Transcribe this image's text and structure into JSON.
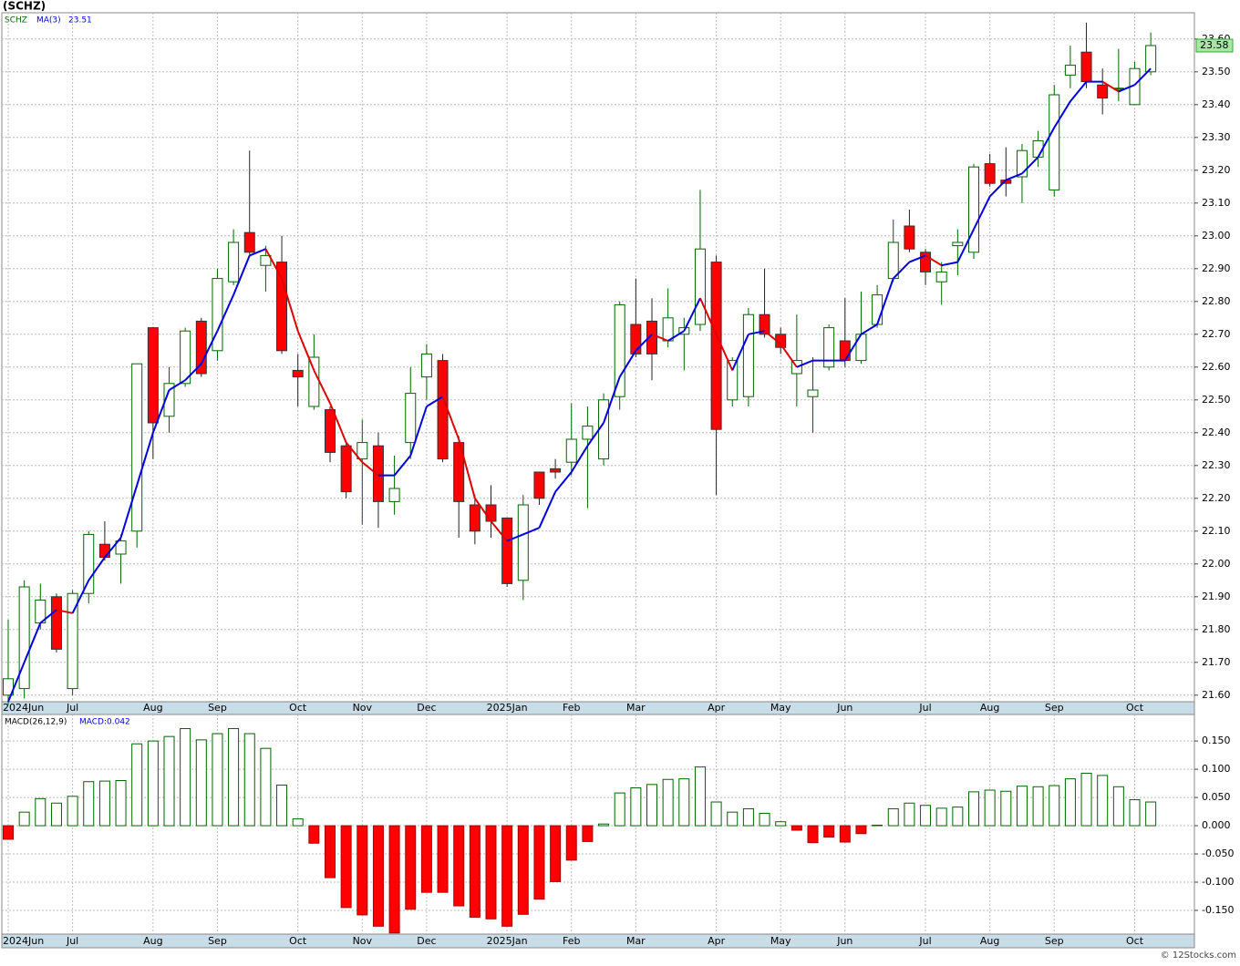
{
  "chart_data": [
    {
      "type": "candlestick",
      "title": "(SCHZ)",
      "symbol": "SCHZ",
      "categories": [
        "2024Jun",
        null,
        null,
        null,
        "Jul",
        null,
        null,
        null,
        null,
        "Aug",
        null,
        null,
        null,
        "Sep",
        null,
        null,
        null,
        null,
        "Oct",
        null,
        null,
        null,
        "Nov",
        null,
        null,
        null,
        "Dec",
        null,
        null,
        null,
        null,
        "2025Jan",
        null,
        null,
        null,
        "Feb",
        null,
        null,
        null,
        "Mar",
        null,
        null,
        null,
        null,
        "Apr",
        null,
        null,
        null,
        "May",
        null,
        null,
        null,
        "Jun",
        null,
        null,
        null,
        null,
        "Jul",
        null,
        null,
        null,
        "Aug",
        null,
        null,
        null,
        "Sep",
        null,
        null,
        null,
        null,
        "Oct",
        null
      ],
      "open": [
        21.6,
        21.62,
        21.82,
        21.9,
        21.62,
        21.91,
        22.06,
        22.03,
        22.1,
        22.72,
        22.45,
        22.55,
        22.74,
        22.65,
        22.86,
        23.01,
        22.91,
        22.92,
        22.59,
        22.48,
        22.47,
        22.36,
        22.32,
        22.36,
        22.19,
        22.37,
        22.57,
        22.62,
        22.37,
        22.18,
        22.18,
        22.14,
        21.95,
        22.28,
        22.29,
        22.31,
        22.38,
        22.32,
        22.51,
        22.73,
        22.74,
        22.68,
        22.7,
        22.73,
        22.92,
        22.5,
        22.51,
        22.76,
        22.7,
        22.58,
        22.51,
        22.6,
        22.68,
        22.62,
        22.73,
        22.87,
        23.03,
        22.95,
        22.86,
        22.97,
        22.95,
        23.22,
        23.17,
        23.18,
        23.24,
        23.14,
        23.49,
        23.56,
        23.46,
        23.45,
        23.4,
        23.5
      ],
      "high": [
        21.83,
        21.95,
        21.94,
        21.91,
        21.92,
        22.1,
        22.13,
        22.09,
        22.61,
        22.72,
        22.6,
        22.72,
        22.75,
        22.9,
        23.02,
        23.26,
        22.97,
        23.0,
        22.64,
        22.7,
        22.48,
        22.37,
        22.44,
        22.4,
        22.33,
        22.6,
        22.67,
        22.64,
        22.39,
        22.21,
        22.24,
        22.14,
        22.21,
        22.28,
        22.32,
        22.49,
        22.48,
        22.52,
        22.8,
        22.87,
        22.81,
        22.84,
        22.75,
        23.14,
        22.94,
        22.63,
        22.78,
        22.9,
        22.72,
        22.76,
        22.63,
        22.73,
        22.81,
        22.83,
        22.85,
        23.05,
        23.08,
        22.96,
        22.92,
        23.02,
        23.22,
        23.25,
        23.27,
        23.28,
        23.32,
        23.46,
        23.58,
        23.65,
        23.51,
        23.57,
        23.53,
        23.62
      ],
      "low": [
        21.57,
        21.59,
        21.8,
        21.73,
        21.6,
        21.88,
        22.01,
        21.94,
        22.05,
        22.32,
        22.4,
        22.54,
        22.57,
        22.62,
        22.85,
        22.94,
        22.83,
        22.64,
        22.48,
        22.47,
        22.31,
        22.2,
        22.12,
        22.11,
        22.15,
        22.32,
        22.5,
        22.31,
        22.08,
        22.06,
        22.08,
        21.93,
        21.89,
        22.18,
        22.26,
        22.27,
        22.17,
        22.3,
        22.47,
        22.63,
        22.56,
        22.66,
        22.59,
        22.71,
        22.21,
        22.48,
        22.48,
        22.69,
        22.64,
        22.48,
        22.4,
        22.59,
        22.6,
        22.61,
        22.72,
        22.86,
        22.95,
        22.85,
        22.79,
        22.88,
        22.93,
        23.15,
        23.12,
        23.1,
        23.21,
        23.12,
        23.45,
        23.45,
        23.37,
        23.41,
        23.4,
        23.49
      ],
      "close": [
        21.65,
        21.93,
        21.89,
        21.74,
        21.91,
        22.09,
        22.02,
        22.07,
        22.61,
        22.43,
        22.55,
        22.71,
        22.58,
        22.87,
        22.98,
        22.95,
        22.94,
        22.65,
        22.57,
        22.63,
        22.34,
        22.22,
        22.37,
        22.19,
        22.23,
        22.52,
        22.64,
        22.32,
        22.19,
        22.1,
        22.13,
        21.94,
        22.18,
        22.2,
        22.28,
        22.38,
        22.42,
        22.5,
        22.79,
        22.64,
        22.64,
        22.75,
        22.72,
        22.96,
        22.41,
        22.62,
        22.76,
        22.7,
        22.66,
        22.62,
        22.53,
        22.72,
        22.62,
        22.7,
        22.82,
        22.98,
        22.96,
        22.89,
        22.89,
        22.98,
        23.21,
        23.16,
        23.16,
        23.26,
        23.29,
        23.43,
        23.52,
        23.47,
        23.42,
        23.45,
        23.51,
        23.58
      ],
      "up_color": "#006400",
      "down_color": "#ff0000",
      "series": [
        {
          "name": "MA(3)",
          "color": "#0000dd",
          "down_color": "#dd0000",
          "values": [
            21.58,
            21.7,
            21.82,
            21.86,
            21.85,
            21.95,
            22.02,
            22.08,
            22.24,
            22.4,
            22.53,
            22.56,
            22.61,
            22.71,
            22.82,
            22.94,
            22.96,
            22.87,
            22.71,
            22.59,
            22.49,
            22.37,
            22.31,
            22.27,
            22.27,
            22.33,
            22.48,
            22.51,
            22.38,
            22.2,
            22.13,
            22.07,
            22.09,
            22.11,
            22.22,
            22.28,
            22.36,
            22.43,
            22.57,
            22.65,
            22.7,
            22.68,
            22.71,
            22.81,
            22.7,
            22.59,
            22.7,
            22.71,
            22.67,
            22.6,
            22.62,
            22.62,
            22.62,
            22.7,
            22.73,
            22.87,
            22.92,
            22.94,
            22.91,
            22.92,
            23.02,
            23.12,
            23.17,
            23.19,
            23.24,
            23.33,
            23.41,
            23.47,
            23.47,
            23.44,
            23.46,
            23.51
          ]
        }
      ],
      "ylim": [
        21.58,
        23.68
      ],
      "yticks": [
        {
          "value": 21.6,
          "label": "21.60"
        },
        {
          "value": 21.7,
          "label": "21.70"
        },
        {
          "value": 21.8,
          "label": "21.80"
        },
        {
          "value": 21.9,
          "label": "21.90"
        },
        {
          "value": 22.0,
          "label": "22.00"
        },
        {
          "value": 22.1,
          "label": "22.10"
        },
        {
          "value": 22.2,
          "label": "22.20"
        },
        {
          "value": 22.3,
          "label": "22.30"
        },
        {
          "value": 22.4,
          "label": "22.40"
        },
        {
          "value": 22.5,
          "label": "22.50"
        },
        {
          "value": 22.6,
          "label": "22.60"
        },
        {
          "value": 22.7,
          "label": "22.70"
        },
        {
          "value": 22.8,
          "label": "22.80"
        },
        {
          "value": 22.9,
          "label": "22.90"
        },
        {
          "value": 23.0,
          "label": "23.00"
        },
        {
          "value": 23.1,
          "label": "23.10"
        },
        {
          "value": 23.2,
          "label": "23.20"
        },
        {
          "value": 23.3,
          "label": "23.30"
        },
        {
          "value": 23.4,
          "label": "23.40"
        },
        {
          "value": 23.5,
          "label": "23.50"
        },
        {
          "value": 23.6,
          "label": "23.60"
        }
      ],
      "grid": true
    },
    {
      "type": "bar",
      "title": "MACD(26,12,9)",
      "annotation": "MACD:0.042",
      "categories": [
        "2024Jun",
        null,
        null,
        null,
        "Jul",
        null,
        null,
        null,
        null,
        "Aug",
        null,
        null,
        null,
        "Sep",
        null,
        null,
        null,
        null,
        "Oct",
        null,
        null,
        null,
        "Nov",
        null,
        null,
        null,
        "Dec",
        null,
        null,
        null,
        null,
        "2025Jan",
        null,
        null,
        null,
        "Feb",
        null,
        null,
        null,
        "Mar",
        null,
        null,
        null,
        null,
        "Apr",
        null,
        null,
        null,
        "May",
        null,
        null,
        null,
        "Jun",
        null,
        null,
        null,
        null,
        "Jul",
        null,
        null,
        null,
        "Aug",
        null,
        null,
        null,
        "Sep",
        null,
        null,
        null,
        null,
        "Oct",
        null
      ],
      "values": [
        -0.024,
        0.024,
        0.048,
        0.04,
        0.052,
        0.078,
        0.079,
        0.08,
        0.145,
        0.15,
        0.158,
        0.172,
        0.152,
        0.163,
        0.172,
        0.163,
        0.137,
        0.072,
        0.012,
        -0.031,
        -0.092,
        -0.145,
        -0.158,
        -0.178,
        -0.19,
        -0.148,
        -0.118,
        -0.118,
        -0.142,
        -0.162,
        -0.165,
        -0.178,
        -0.157,
        -0.13,
        -0.099,
        -0.061,
        -0.028,
        0.003,
        0.058,
        0.067,
        0.073,
        0.082,
        0.083,
        0.104,
        0.042,
        0.024,
        0.03,
        0.022,
        0.007,
        -0.008,
        -0.03,
        -0.02,
        -0.029,
        -0.014,
        0.001,
        0.03,
        0.04,
        0.036,
        0.031,
        0.033,
        0.06,
        0.063,
        0.061,
        0.07,
        0.069,
        0.071,
        0.083,
        0.093,
        0.089,
        0.069,
        0.046,
        0.042
      ],
      "pos_color": "#006400",
      "neg_color": "#ff0000",
      "ylim": [
        -0.192,
        0.197
      ],
      "yticks": [
        {
          "value": -0.15,
          "label": "-0.150"
        },
        {
          "value": -0.1,
          "label": "-0.100"
        },
        {
          "value": -0.05,
          "label": "-0.050"
        },
        {
          "value": 0,
          "label": "0.000"
        },
        {
          "value": 0.05,
          "label": "0.050"
        },
        {
          "value": 0.1,
          "label": "0.100"
        },
        {
          "value": 0.15,
          "label": "0.150"
        }
      ],
      "grid": true
    }
  ],
  "footer": "© 12Stocks.com"
}
